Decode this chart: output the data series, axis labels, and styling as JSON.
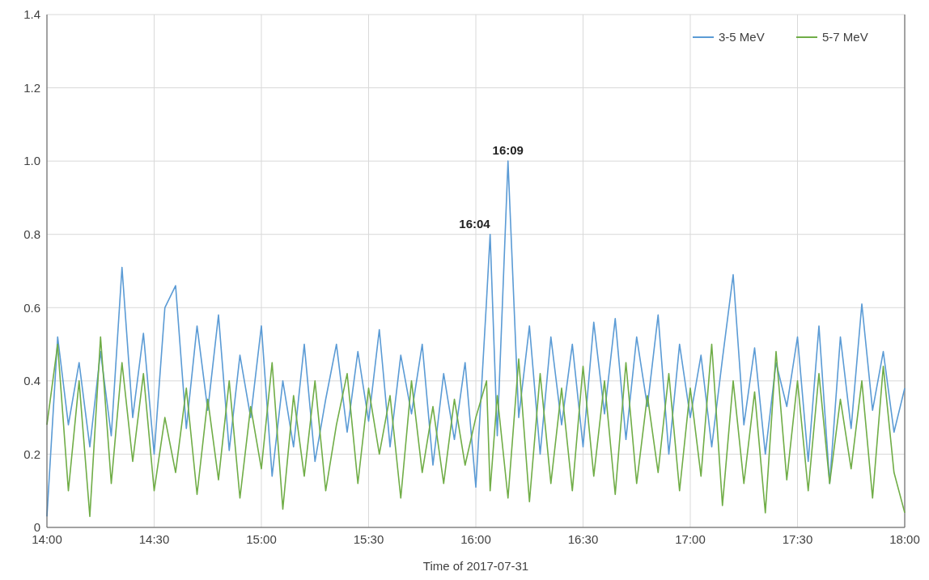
{
  "chart_data": {
    "type": "line",
    "xlabel": "Time of 2017-07-31",
    "x": [
      14,
      14.05,
      14.1,
      14.15,
      14.2,
      14.25,
      14.3,
      14.35,
      14.4,
      14.45,
      14.5,
      14.55,
      14.6,
      14.65,
      14.7,
      14.75,
      14.8,
      14.85,
      14.9,
      14.95,
      15,
      15.05,
      15.1,
      15.15,
      15.2,
      15.25,
      15.3,
      15.35,
      15.4,
      15.45,
      15.5,
      15.55,
      15.6,
      15.65,
      15.7,
      15.75,
      15.8,
      15.85,
      15.9,
      15.95,
      16,
      16.05,
      16.0667,
      16.1,
      16.15,
      16.2,
      16.25,
      16.3,
      16.35,
      16.4,
      16.45,
      16.5,
      16.55,
      16.6,
      16.65,
      16.7,
      16.75,
      16.8,
      16.85,
      16.9,
      16.95,
      17,
      17.05,
      17.1,
      17.15,
      17.2,
      17.25,
      17.3,
      17.35,
      17.4,
      17.45,
      17.5,
      17.55,
      17.6,
      17.65,
      17.7,
      17.75,
      17.8,
      17.85,
      17.9,
      17.95,
      18
    ],
    "series": [
      {
        "name": "3-5 MeV",
        "color": "#5b9bd5",
        "values": [
          0.03,
          0.52,
          0.28,
          0.45,
          0.22,
          0.48,
          0.25,
          0.71,
          0.3,
          0.53,
          0.2,
          0.6,
          0.66,
          0.27,
          0.55,
          0.32,
          0.58,
          0.21,
          0.47,
          0.3,
          0.55,
          0.14,
          0.4,
          0.22,
          0.5,
          0.18,
          0.35,
          0.5,
          0.26,
          0.48,
          0.29,
          0.54,
          0.22,
          0.47,
          0.31,
          0.5,
          0.17,
          0.42,
          0.24,
          0.45,
          0.11,
          0.62,
          0.8,
          0.25,
          1.0,
          0.3,
          0.55,
          0.2,
          0.52,
          0.28,
          0.5,
          0.22,
          0.56,
          0.31,
          0.57,
          0.24,
          0.52,
          0.33,
          0.58,
          0.2,
          0.5,
          0.3,
          0.47,
          0.22,
          0.46,
          0.69,
          0.28,
          0.49,
          0.2,
          0.45,
          0.33,
          0.52,
          0.18,
          0.55,
          0.12,
          0.52,
          0.27,
          0.61,
          0.32,
          0.48,
          0.26,
          0.38
        ]
      },
      {
        "name": "5-7 MeV",
        "color": "#70ad47",
        "values": [
          0.28,
          0.5,
          0.1,
          0.4,
          0.03,
          0.52,
          0.12,
          0.45,
          0.18,
          0.42,
          0.1,
          0.3,
          0.15,
          0.38,
          0.09,
          0.35,
          0.13,
          0.4,
          0.08,
          0.33,
          0.16,
          0.45,
          0.05,
          0.36,
          0.14,
          0.4,
          0.1,
          0.28,
          0.42,
          0.12,
          0.38,
          0.2,
          0.36,
          0.08,
          0.4,
          0.15,
          0.33,
          0.12,
          0.35,
          0.17,
          0.3,
          0.4,
          0.1,
          0.36,
          0.08,
          0.46,
          0.07,
          0.42,
          0.12,
          0.38,
          0.1,
          0.44,
          0.14,
          0.4,
          0.09,
          0.45,
          0.12,
          0.36,
          0.15,
          0.42,
          0.1,
          0.38,
          0.14,
          0.5,
          0.06,
          0.4,
          0.12,
          0.37,
          0.04,
          0.48,
          0.13,
          0.4,
          0.1,
          0.42,
          0.12,
          0.35,
          0.16,
          0.4,
          0.08,
          0.44,
          0.15,
          0.04
        ]
      }
    ],
    "xlim": [
      14,
      18
    ],
    "xticks": [
      {
        "value": 14,
        "label": "14:00"
      },
      {
        "value": 14.5,
        "label": "14:30"
      },
      {
        "value": 15,
        "label": "15:00"
      },
      {
        "value": 15.5,
        "label": "15:30"
      },
      {
        "value": 16,
        "label": "16:00"
      },
      {
        "value": 16.5,
        "label": "16:30"
      },
      {
        "value": 17,
        "label": "17:00"
      },
      {
        "value": 17.5,
        "label": "17:30"
      },
      {
        "value": 18,
        "label": "18:00"
      }
    ],
    "ylim": [
      0,
      1.4
    ],
    "yticks": [
      0,
      0.2,
      0.4,
      0.6,
      0.8,
      {
        "value": 1,
        "label": "1.0"
      },
      1.2,
      1.4
    ],
    "annotations": [
      {
        "text": "16:04",
        "x": 16.0667,
        "y": 0.8
      },
      {
        "text": "16:09",
        "x": 16.15,
        "y": 1.0
      }
    ],
    "grid": true,
    "legend": "top right",
    "marker": "none",
    "line_style": "solid"
  }
}
